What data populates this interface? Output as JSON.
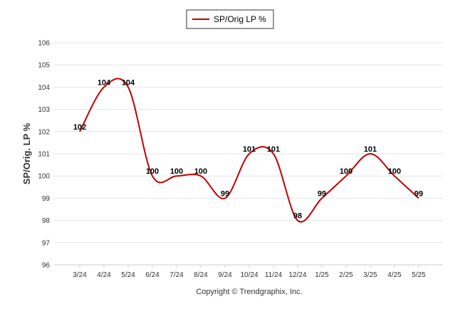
{
  "chart_data": {
    "type": "line",
    "categories": [
      "3/24",
      "4/24",
      "5/24",
      "6/24",
      "7/24",
      "8/24",
      "9/24",
      "10/24",
      "11/24",
      "12/24",
      "1/25",
      "2/25",
      "3/25",
      "4/25",
      "5/25"
    ],
    "series": [
      {
        "name": "SP/Orig LP %",
        "values": [
          102,
          104,
          104,
          100,
          100,
          100,
          99,
          101,
          101,
          98,
          99,
          100,
          101,
          100,
          99
        ],
        "labels": [
          "102",
          "104",
          "104",
          "100",
          "100",
          "100",
          "99",
          "101",
          "101",
          "98",
          "99",
          "100",
          "101",
          "100",
          "99"
        ],
        "color": "#c00000"
      }
    ],
    "ylabel": "SP/Orig. LP %",
    "ylim": [
      96,
      106
    ],
    "yticks": [
      "96",
      "97",
      "98",
      "99",
      "100",
      "101",
      "102",
      "103",
      "104",
      "105",
      "106"
    ],
    "grid": true,
    "legend": "top-center",
    "copyright": "Copyright © Trendgraphix, Inc."
  }
}
